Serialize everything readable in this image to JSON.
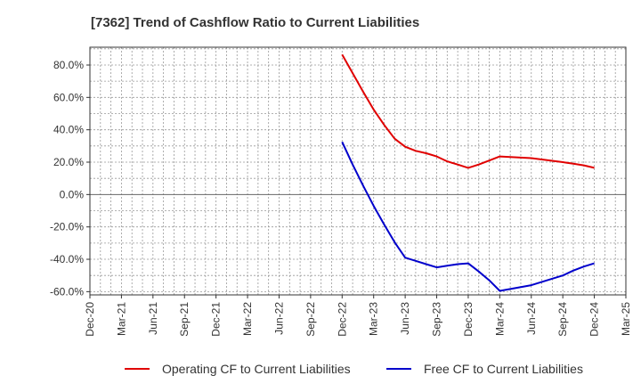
{
  "chart_data": {
    "type": "line",
    "title": "[7362]  Trend of Cashflow Ratio to Current Liabilities",
    "xlabel": "",
    "ylabel": "",
    "x_ticks": [
      "Dec-20",
      "Mar-21",
      "Jun-21",
      "Sep-21",
      "Dec-21",
      "Mar-22",
      "Jun-22",
      "Sep-22",
      "Dec-22",
      "Mar-23",
      "Jun-23",
      "Sep-23",
      "Dec-23",
      "Mar-24",
      "Jun-24",
      "Sep-24",
      "Dec-24",
      "Mar-25"
    ],
    "y_ticks": [
      "80.0%",
      "60.0%",
      "40.0%",
      "20.0%",
      "0.0%",
      "-20.0%",
      "-40.0%",
      "-60.0%"
    ],
    "y_tick_values": [
      80,
      60,
      40,
      20,
      0,
      -20,
      -40,
      -60
    ],
    "ylim": [
      -62,
      91
    ],
    "grid": true,
    "legend_position": "bottom",
    "series": [
      {
        "name": "Operating CF to Current Liabilities",
        "color": "#e00000",
        "points": [
          [
            "Dec-22",
            86.5
          ],
          [
            "Jan-23",
            75.0
          ],
          [
            "Feb-23",
            63.5
          ],
          [
            "Mar-23",
            52.5
          ],
          [
            "Apr-23",
            43.0
          ],
          [
            "May-23",
            34.5
          ],
          [
            "Jun-23",
            29.5
          ],
          [
            "Jul-23",
            27.0
          ],
          [
            "Aug-23",
            25.5
          ],
          [
            "Sep-23",
            23.5
          ],
          [
            "Oct-23",
            20.5
          ],
          [
            "Nov-23",
            18.5
          ],
          [
            "Dec-23",
            16.5
          ],
          [
            "Jan-24",
            18.5
          ],
          [
            "Feb-24",
            21.0
          ],
          [
            "Mar-24",
            23.5
          ],
          [
            "Jun-24",
            22.5
          ],
          [
            "Sep-24",
            20.0
          ],
          [
            "Oct-24",
            19.0
          ],
          [
            "Nov-24",
            18.0
          ],
          [
            "Dec-24",
            16.5
          ]
        ]
      },
      {
        "name": "Free CF to Current Liabilities",
        "color": "#0000cc",
        "points": [
          [
            "Dec-22",
            32.5
          ],
          [
            "Jan-23",
            18.5
          ],
          [
            "Feb-23",
            5.5
          ],
          [
            "Mar-23",
            -7.0
          ],
          [
            "Apr-23",
            -18.5
          ],
          [
            "May-23",
            -29.5
          ],
          [
            "Jun-23",
            -39.0
          ],
          [
            "Jul-23",
            -41.0
          ],
          [
            "Aug-23",
            -43.0
          ],
          [
            "Sep-23",
            -45.0
          ],
          [
            "Oct-23",
            -44.0
          ],
          [
            "Nov-23",
            -43.0
          ],
          [
            "Dec-23",
            -42.5
          ],
          [
            "Jan-24",
            -47.5
          ],
          [
            "Feb-24",
            -53.0
          ],
          [
            "Mar-24",
            -59.5
          ],
          [
            "Jun-24",
            -56.0
          ],
          [
            "Sep-24",
            -50.0
          ],
          [
            "Oct-24",
            -47.0
          ],
          [
            "Nov-24",
            -44.5
          ],
          [
            "Dec-24",
            -42.5
          ]
        ]
      }
    ]
  }
}
